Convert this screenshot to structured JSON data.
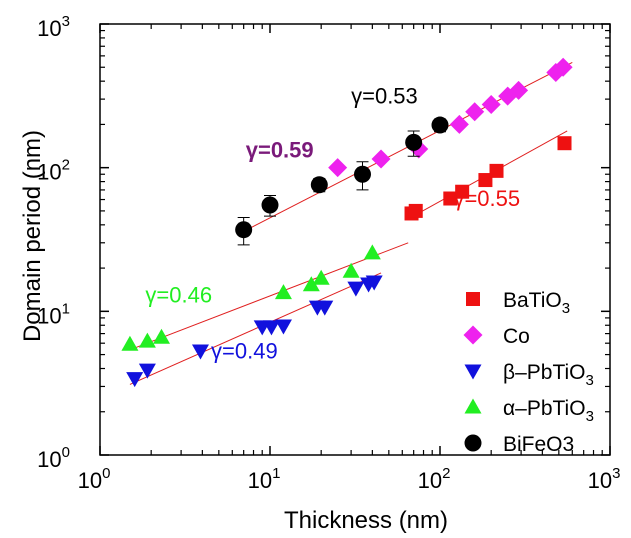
{
  "chart_data": {
    "type": "scatter",
    "xscale": "log",
    "yscale": "log",
    "xlim": [
      1,
      1000
    ],
    "ylim": [
      1,
      1000
    ],
    "xlabel": "Thickness (nm)",
    "ylabel": "Domain period (nm)",
    "x_ticks": [
      {
        "value": 1,
        "base": "10",
        "exp": "0"
      },
      {
        "value": 10,
        "base": "10",
        "exp": "1"
      },
      {
        "value": 100,
        "base": "10",
        "exp": "2"
      },
      {
        "value": 1000,
        "base": "10",
        "exp": "3"
      }
    ],
    "y_ticks": [
      {
        "value": 1,
        "base": "10",
        "exp": "0"
      },
      {
        "value": 10,
        "base": "10",
        "exp": "1"
      },
      {
        "value": 100,
        "base": "10",
        "exp": "2"
      },
      {
        "value": 1000,
        "base": "10",
        "exp": "3"
      }
    ],
    "grid": false,
    "legend_position": "bottom-right",
    "series": [
      {
        "name": "BaTiO3",
        "legend_main": "BaTiO",
        "legend_sub": "3",
        "legend_tail": "",
        "marker": "square",
        "color": "#ee1111",
        "x": [
          68,
          72,
          115,
          135,
          185,
          215,
          540
        ],
        "y": [
          48,
          50,
          61,
          68,
          82,
          95,
          148
        ]
      },
      {
        "name": "Co",
        "legend_main": "Co",
        "legend_sub": "",
        "legend_tail": "",
        "marker": "diamond",
        "color": "#ee22ee",
        "x": [
          25,
          45,
          75,
          130,
          160,
          200,
          250,
          290,
          480,
          530
        ],
        "y": [
          100,
          115,
          135,
          200,
          245,
          275,
          315,
          345,
          460,
          500
        ]
      },
      {
        "name": "β–PbTiO3",
        "legend_main": "β–PbTiO",
        "legend_sub": "3",
        "legend_tail": "",
        "marker": "triangle-down",
        "color": "#1111dd",
        "x": [
          1.6,
          1.9,
          3.9,
          9,
          10.2,
          12,
          19,
          21,
          32,
          38,
          41
        ],
        "y": [
          3.4,
          3.9,
          5.3,
          7.8,
          7.8,
          7.9,
          10.7,
          10.7,
          14.5,
          15.5,
          16.0
        ]
      },
      {
        "name": "α–PbTiO3",
        "legend_main": "α–PbTiO",
        "legend_sub": "3",
        "legend_tail": "",
        "marker": "triangle-up",
        "color": "#22ee22",
        "x": [
          1.5,
          1.9,
          2.3,
          12,
          17.5,
          20,
          30,
          40
        ],
        "y": [
          5.9,
          6.2,
          6.6,
          13.5,
          15.3,
          17.0,
          19.0,
          25.5
        ]
      },
      {
        "name": "BiFeO3",
        "legend_main": "BiFeO3",
        "legend_sub": "",
        "legend_tail": "",
        "marker": "circle",
        "color": "#000000",
        "x": [
          7,
          10,
          19.5,
          35,
          70,
          100
        ],
        "y": [
          37,
          55,
          76,
          90,
          150,
          198
        ],
        "yerr": [
          8,
          9,
          8,
          20,
          30,
          20
        ]
      }
    ],
    "fit_lines": [
      {
        "x": [
          7,
          600
        ],
        "y": [
          36,
          540
        ]
      },
      {
        "x": [
          65,
          560
        ],
        "y": [
          44,
          180
        ]
      },
      {
        "x": [
          1.5,
          45
        ],
        "y": [
          3.1,
          18.5
        ]
      },
      {
        "x": [
          1.5,
          65
        ],
        "y": [
          5.4,
          30
        ]
      }
    ],
    "annotations": [
      {
        "text": "γ=0.53",
        "color": "#000000",
        "bold": false,
        "x": 30,
        "y": 280
      },
      {
        "text": "γ=0.59",
        "color": "#7a1a7a",
        "bold": true,
        "x": 7.2,
        "y": 118
      },
      {
        "text": "γ=0.55",
        "color": "#ee1111",
        "bold": false,
        "x": 120,
        "y": 54
      },
      {
        "text": "γ=0.46",
        "color": "#22ee22",
        "bold": false,
        "x": 1.85,
        "y": 11.5
      },
      {
        "text": "γ=0.49",
        "color": "#1111dd",
        "bold": false,
        "x": 4.5,
        "y": 4.7
      }
    ]
  }
}
